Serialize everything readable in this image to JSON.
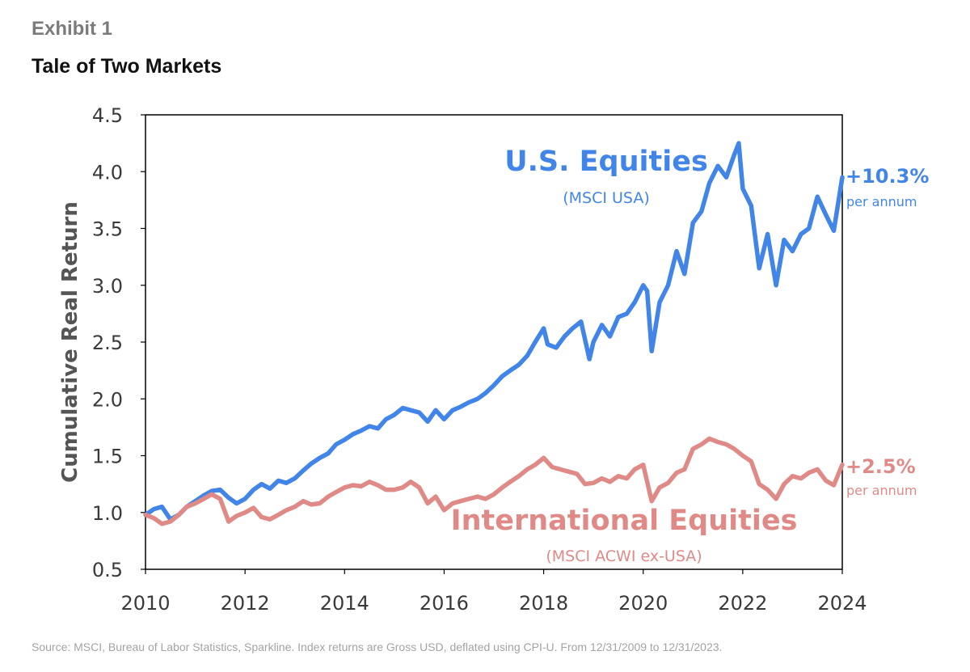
{
  "header": {
    "exhibit": "Exhibit 1",
    "title": "Tale of Two Markets"
  },
  "footer": {
    "source": "Source: MSCI, Bureau of Labor Statistics, Sparkline. Index returns are Gross USD, deflated using CPI-U. From 12/31/2009 to 12/31/2023."
  },
  "colors": {
    "us": "#4285e8",
    "intl": "#e08a87",
    "axis": "#000000",
    "tick_text": "#3a3a3a"
  },
  "chart_data": {
    "type": "line",
    "title": "Tale of Two Markets",
    "ylabel": "Cumulative Real Return",
    "xlabel": "",
    "xlim": [
      2010,
      2024
    ],
    "ylim": [
      0.5,
      4.5
    ],
    "x_ticks": [
      2010,
      2012,
      2014,
      2016,
      2018,
      2020,
      2022,
      2024
    ],
    "y_ticks": [
      "0.5",
      "1.0",
      "1.5",
      "2.0",
      "2.5",
      "3.0",
      "3.5",
      "4.0",
      "4.5"
    ],
    "grid": false,
    "series": [
      {
        "key": "us",
        "name": "U.S. Equities",
        "sublabel": "(MSCI USA)",
        "end_label": "+10.3%",
        "end_sublabel": "per annum",
        "points": [
          [
            2010.0,
            0.98
          ],
          [
            2010.17,
            1.03
          ],
          [
            2010.33,
            1.05
          ],
          [
            2010.5,
            0.94
          ],
          [
            2010.67,
            0.98
          ],
          [
            2010.83,
            1.05
          ],
          [
            2011.0,
            1.1
          ],
          [
            2011.17,
            1.15
          ],
          [
            2011.33,
            1.19
          ],
          [
            2011.5,
            1.2
          ],
          [
            2011.67,
            1.13
          ],
          [
            2011.83,
            1.08
          ],
          [
            2012.0,
            1.12
          ],
          [
            2012.17,
            1.2
          ],
          [
            2012.33,
            1.25
          ],
          [
            2012.5,
            1.21
          ],
          [
            2012.67,
            1.28
          ],
          [
            2012.83,
            1.26
          ],
          [
            2013.0,
            1.3
          ],
          [
            2013.17,
            1.37
          ],
          [
            2013.33,
            1.43
          ],
          [
            2013.5,
            1.48
          ],
          [
            2013.67,
            1.52
          ],
          [
            2013.83,
            1.6
          ],
          [
            2014.0,
            1.64
          ],
          [
            2014.17,
            1.69
          ],
          [
            2014.33,
            1.72
          ],
          [
            2014.5,
            1.76
          ],
          [
            2014.67,
            1.74
          ],
          [
            2014.83,
            1.82
          ],
          [
            2015.0,
            1.86
          ],
          [
            2015.17,
            1.92
          ],
          [
            2015.33,
            1.9
          ],
          [
            2015.5,
            1.88
          ],
          [
            2015.67,
            1.8
          ],
          [
            2015.83,
            1.9
          ],
          [
            2016.0,
            1.82
          ],
          [
            2016.17,
            1.9
          ],
          [
            2016.33,
            1.93
          ],
          [
            2016.5,
            1.97
          ],
          [
            2016.67,
            2.0
          ],
          [
            2016.83,
            2.05
          ],
          [
            2017.0,
            2.12
          ],
          [
            2017.17,
            2.2
          ],
          [
            2017.33,
            2.25
          ],
          [
            2017.5,
            2.3
          ],
          [
            2017.67,
            2.38
          ],
          [
            2017.83,
            2.5
          ],
          [
            2018.0,
            2.62
          ],
          [
            2018.08,
            2.48
          ],
          [
            2018.25,
            2.45
          ],
          [
            2018.42,
            2.55
          ],
          [
            2018.58,
            2.62
          ],
          [
            2018.75,
            2.68
          ],
          [
            2018.92,
            2.35
          ],
          [
            2019.0,
            2.5
          ],
          [
            2019.17,
            2.65
          ],
          [
            2019.33,
            2.55
          ],
          [
            2019.5,
            2.72
          ],
          [
            2019.67,
            2.75
          ],
          [
            2019.83,
            2.85
          ],
          [
            2020.0,
            3.0
          ],
          [
            2020.08,
            2.95
          ],
          [
            2020.17,
            2.42
          ],
          [
            2020.33,
            2.85
          ],
          [
            2020.5,
            3.0
          ],
          [
            2020.67,
            3.3
          ],
          [
            2020.83,
            3.1
          ],
          [
            2021.0,
            3.55
          ],
          [
            2021.17,
            3.65
          ],
          [
            2021.33,
            3.9
          ],
          [
            2021.5,
            4.05
          ],
          [
            2021.67,
            3.95
          ],
          [
            2021.83,
            4.15
          ],
          [
            2021.92,
            4.25
          ],
          [
            2022.0,
            3.85
          ],
          [
            2022.17,
            3.7
          ],
          [
            2022.33,
            3.15
          ],
          [
            2022.5,
            3.45
          ],
          [
            2022.67,
            3.0
          ],
          [
            2022.83,
            3.4
          ],
          [
            2023.0,
            3.3
          ],
          [
            2023.17,
            3.45
          ],
          [
            2023.33,
            3.5
          ],
          [
            2023.5,
            3.78
          ],
          [
            2023.67,
            3.62
          ],
          [
            2023.83,
            3.48
          ],
          [
            2024.0,
            3.95
          ]
        ]
      },
      {
        "key": "intl",
        "name": "International Equities",
        "sublabel": "(MSCI ACWI ex-USA)",
        "end_label": "+2.5%",
        "end_sublabel": "per annum",
        "points": [
          [
            2010.0,
            0.98
          ],
          [
            2010.17,
            0.95
          ],
          [
            2010.33,
            0.9
          ],
          [
            2010.5,
            0.92
          ],
          [
            2010.67,
            0.98
          ],
          [
            2010.83,
            1.05
          ],
          [
            2011.0,
            1.08
          ],
          [
            2011.17,
            1.12
          ],
          [
            2011.33,
            1.16
          ],
          [
            2011.5,
            1.12
          ],
          [
            2011.67,
            0.92
          ],
          [
            2011.83,
            0.97
          ],
          [
            2012.0,
            1.0
          ],
          [
            2012.17,
            1.04
          ],
          [
            2012.33,
            0.96
          ],
          [
            2012.5,
            0.94
          ],
          [
            2012.67,
            0.98
          ],
          [
            2012.83,
            1.02
          ],
          [
            2013.0,
            1.05
          ],
          [
            2013.17,
            1.1
          ],
          [
            2013.33,
            1.07
          ],
          [
            2013.5,
            1.08
          ],
          [
            2013.67,
            1.14
          ],
          [
            2013.83,
            1.18
          ],
          [
            2014.0,
            1.22
          ],
          [
            2014.17,
            1.24
          ],
          [
            2014.33,
            1.23
          ],
          [
            2014.5,
            1.27
          ],
          [
            2014.67,
            1.24
          ],
          [
            2014.83,
            1.2
          ],
          [
            2015.0,
            1.2
          ],
          [
            2015.17,
            1.22
          ],
          [
            2015.33,
            1.27
          ],
          [
            2015.5,
            1.22
          ],
          [
            2015.67,
            1.08
          ],
          [
            2015.83,
            1.14
          ],
          [
            2016.0,
            1.02
          ],
          [
            2016.17,
            1.08
          ],
          [
            2016.33,
            1.1
          ],
          [
            2016.5,
            1.12
          ],
          [
            2016.67,
            1.14
          ],
          [
            2016.83,
            1.12
          ],
          [
            2017.0,
            1.16
          ],
          [
            2017.17,
            1.22
          ],
          [
            2017.33,
            1.27
          ],
          [
            2017.5,
            1.32
          ],
          [
            2017.67,
            1.38
          ],
          [
            2017.83,
            1.42
          ],
          [
            2018.0,
            1.48
          ],
          [
            2018.17,
            1.4
          ],
          [
            2018.33,
            1.38
          ],
          [
            2018.5,
            1.36
          ],
          [
            2018.67,
            1.34
          ],
          [
            2018.83,
            1.25
          ],
          [
            2019.0,
            1.26
          ],
          [
            2019.17,
            1.3
          ],
          [
            2019.33,
            1.27
          ],
          [
            2019.5,
            1.32
          ],
          [
            2019.67,
            1.3
          ],
          [
            2019.83,
            1.38
          ],
          [
            2020.0,
            1.42
          ],
          [
            2020.17,
            1.1
          ],
          [
            2020.33,
            1.22
          ],
          [
            2020.5,
            1.26
          ],
          [
            2020.67,
            1.35
          ],
          [
            2020.83,
            1.38
          ],
          [
            2021.0,
            1.56
          ],
          [
            2021.17,
            1.6
          ],
          [
            2021.33,
            1.65
          ],
          [
            2021.5,
            1.62
          ],
          [
            2021.67,
            1.6
          ],
          [
            2021.83,
            1.56
          ],
          [
            2022.0,
            1.5
          ],
          [
            2022.17,
            1.45
          ],
          [
            2022.33,
            1.25
          ],
          [
            2022.5,
            1.2
          ],
          [
            2022.67,
            1.12
          ],
          [
            2022.83,
            1.25
          ],
          [
            2023.0,
            1.32
          ],
          [
            2023.17,
            1.3
          ],
          [
            2023.33,
            1.35
          ],
          [
            2023.5,
            1.38
          ],
          [
            2023.67,
            1.28
          ],
          [
            2023.83,
            1.24
          ],
          [
            2024.0,
            1.42
          ]
        ]
      }
    ]
  }
}
